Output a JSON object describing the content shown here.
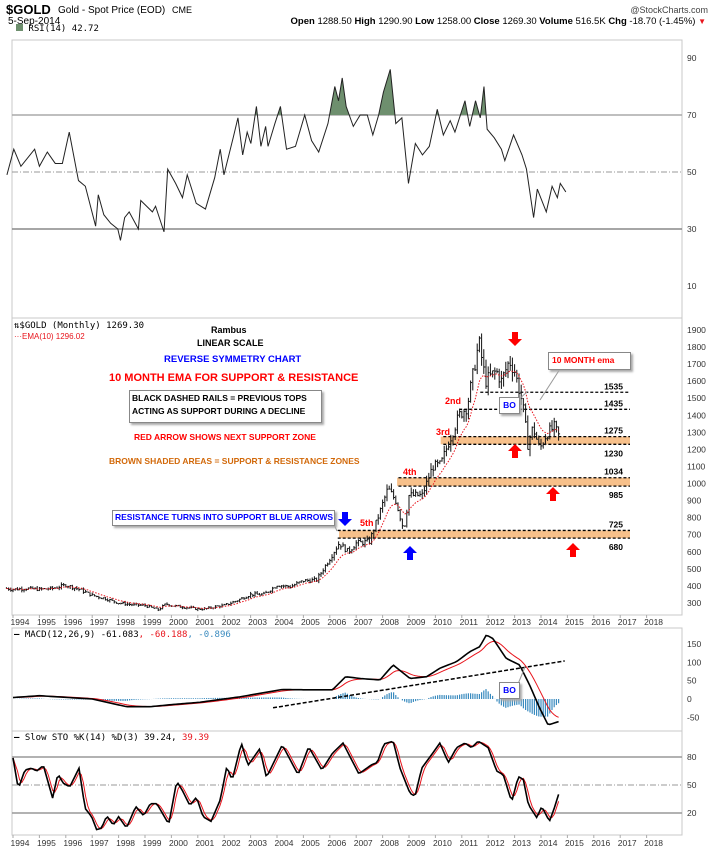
{
  "header": {
    "symbol": "$GOLD",
    "name": "Gold - Spot Price (EOD)",
    "exchange": "CME",
    "source": "@StockCharts.com",
    "date": "5-Sep-2014",
    "open_label": "Open",
    "open": "1288.50",
    "high_label": "High",
    "high": "1290.90",
    "low_label": "Low",
    "low": "1258.00",
    "close_label": "Close",
    "close": "1269.30",
    "volume_label": "Volume",
    "volume": "516.5K",
    "chg_label": "Chg",
    "chg": "-18.70 (-1.45%)",
    "chg_icon": "triangle-down-icon"
  },
  "colors": {
    "price": "#000000",
    "ema": "#e8141c",
    "rsi_fill": "#6e8f6e",
    "macd_hist": "#3a8bbf",
    "zone": "#f7c08a",
    "annotation_red": "#ff0000",
    "annotation_blue": "#0000ff",
    "annotation_brown": "#d2690a"
  },
  "chart_data": [
    {
      "type": "line",
      "panel": "RSI",
      "legend": "RSI(14) 42.72",
      "ylim": [
        0,
        100
      ],
      "yticks": [
        90,
        70,
        50,
        30,
        10
      ],
      "reference_lines": [
        70,
        50,
        30
      ],
      "x": [
        1993.77,
        1994.03,
        1994.3,
        1994.82,
        1995.0,
        1995.3,
        1995.6,
        1995.87,
        1996.13,
        1996.48,
        1996.74,
        1997.13,
        1997.23,
        1997.44,
        1997.7,
        1997.97,
        1998.07,
        1998.23,
        1998.4,
        1998.75,
        1998.84,
        1999.28,
        1999.4,
        1999.72,
        1999.86,
        2000.16,
        2000.42,
        2000.6,
        2000.94,
        2001.29,
        2001.64,
        2001.85,
        2001.99,
        2002.34,
        2002.52,
        2002.7,
        2002.87,
        2003.01,
        2003.22,
        2003.39,
        2003.57,
        2003.66,
        2003.92,
        2004.13,
        2004.36,
        2004.7,
        2005.05,
        2005.31,
        2005.58,
        2005.93,
        2006.19,
        2006.33,
        2006.47,
        2006.62,
        2006.89,
        2007.15,
        2007.42,
        2007.63,
        2007.85,
        2008.03,
        2008.29,
        2008.5,
        2008.73,
        2008.85,
        2008.98,
        2009.24,
        2009.51,
        2009.77,
        2010.07,
        2010.3,
        2010.56,
        2010.74,
        2011.12,
        2011.3,
        2011.52,
        2011.7,
        2011.84,
        2011.96,
        2012.23,
        2012.5,
        2012.63,
        2012.96,
        2013.28,
        2013.45,
        2013.72,
        2013.86,
        2014.2,
        2014.42,
        2014.62,
        2014.73,
        2014.94
      ],
      "values": [
        49,
        58,
        52,
        58,
        52,
        57,
        53,
        53,
        64,
        47,
        45,
        31,
        42,
        35,
        32,
        30,
        26,
        34,
        36,
        30,
        40,
        36,
        38,
        29,
        51,
        46,
        41,
        49,
        39,
        37,
        48,
        58,
        49,
        62,
        69,
        56,
        64,
        60,
        73,
        59,
        66,
        59,
        67,
        73,
        58,
        59,
        70,
        61,
        57,
        67,
        80,
        75,
        83,
        73,
        66,
        70,
        70,
        63,
        70,
        78,
        86,
        67,
        69,
        58,
        46,
        60,
        56,
        59,
        72,
        63,
        68,
        64,
        75,
        66,
        75,
        69,
        80,
        65,
        62,
        58,
        54,
        63,
        56,
        51,
        34,
        44,
        36,
        45,
        41,
        46,
        43
      ]
    },
    {
      "type": "ohlc",
      "panel": "Price",
      "legend": "$GOLD (Monthly) 1269.30",
      "ema_legend": "EMA(10) 1296.02",
      "scale": "linear",
      "ylim": [
        250,
        1950
      ],
      "yticks": [
        1900,
        1800,
        1700,
        1600,
        1500,
        1400,
        1300,
        1200,
        1100,
        1000,
        900,
        800,
        700,
        600,
        500,
        400,
        300
      ],
      "xticks": [
        "1994",
        "1995",
        "1996",
        "1997",
        "1998",
        "1999",
        "2000",
        "2001",
        "2002",
        "2003",
        "2004",
        "2005",
        "2006",
        "2007",
        "2008",
        "2009",
        "2010",
        "2011",
        "2012",
        "2013",
        "2014",
        "2015",
        "2016",
        "2017",
        "2018"
      ],
      "x": [
        1993.75,
        1994,
        1994.5,
        1995,
        1995.5,
        1996,
        1996.5,
        1997,
        1997.5,
        1998,
        1998.5,
        1999,
        1999.5,
        1999.8,
        2000,
        2000.5,
        2001,
        2001.3,
        2001.7,
        2002,
        2002.5,
        2003,
        2003.5,
        2004,
        2004.5,
        2005,
        2005.5,
        2006,
        2006.35,
        2006.7,
        2007,
        2007.5,
        2007.8,
        2008.2,
        2008.5,
        2008.8,
        2009,
        2009.5,
        2009.9,
        2010.2,
        2010.5,
        2010.9,
        2011.2,
        2011.65,
        2011.9,
        2012.3,
        2012.5,
        2012.8,
        2013,
        2013.3,
        2013.5,
        2013.7,
        2013.95,
        2014.2,
        2014.5,
        2014.7
      ],
      "close": [
        385,
        380,
        385,
        380,
        385,
        405,
        380,
        345,
        325,
        300,
        290,
        285,
        260,
        295,
        285,
        275,
        265,
        265,
        280,
        285,
        315,
        350,
        350,
        405,
        395,
        430,
        435,
        560,
        650,
        600,
        650,
        660,
        790,
        970,
        900,
        730,
        930,
        930,
        1100,
        1110,
        1240,
        1400,
        1450,
        1830,
        1600,
        1660,
        1600,
        1720,
        1660,
        1470,
        1230,
        1330,
        1200,
        1290,
        1330,
        1270
      ]
    },
    {
      "type": "line",
      "panel": "MACD",
      "legend": "MACD(12,26,9)",
      "macd_value": "-61.083",
      "signal_value": "-60.188",
      "hist_value": "-0.896",
      "ylim": [
        -80,
        190
      ],
      "yticks": [
        150,
        100,
        50,
        0,
        -50
      ],
      "x": [
        1994,
        1995,
        1997,
        1998.3,
        1999.2,
        2000.06,
        2001.07,
        2002.6,
        2004.2,
        2005.25,
        2006.1,
        2006.6,
        2007.15,
        2007.9,
        2008.4,
        2009.04,
        2009.67,
        2010.17,
        2010.8,
        2011.3,
        2011.68,
        2011.93,
        2012.18,
        2012.68,
        2013.19,
        2013.57,
        2013.95,
        2014.27,
        2014.7
      ],
      "values": [
        4,
        9,
        0,
        -21,
        -21,
        -15,
        -9,
        6,
        26,
        25,
        25,
        61,
        56,
        52,
        93,
        56,
        61,
        84,
        102,
        129,
        143,
        175,
        165,
        111,
        93,
        38,
        -25,
        -71,
        -61
      ]
    },
    {
      "type": "line",
      "panel": "Slow STO",
      "legend": "Slow STO %K(14) %D(3)",
      "k_value": "39.24",
      "d_value": "39.39",
      "ylim": [
        0,
        100
      ],
      "yticks": [
        80,
        50,
        20
      ],
      "x": [
        1994.0,
        1994.2,
        1994.45,
        1994.7,
        1994.9,
        1995.15,
        1995.5,
        1995.7,
        1995.9,
        1996.15,
        1996.5,
        1996.73,
        1996.98,
        1997.17,
        1997.36,
        1997.55,
        1997.8,
        1998.0,
        1998.3,
        1998.65,
        1998.95,
        1999.2,
        1999.45,
        1999.9,
        2000.2,
        2000.4,
        2000.7,
        2000.95,
        2001.2,
        2001.5,
        2001.85,
        2002.1,
        2002.3,
        2002.65,
        2002.9,
        2003.35,
        2003.6,
        2004.2,
        2004.8,
        2005.2,
        2005.7,
        2006.1,
        2006.5,
        2007.1,
        2007.6,
        2007.8,
        2008.05,
        2008.4,
        2008.66,
        2009.04,
        2009.23,
        2009.48,
        2009.92,
        2010.17,
        2010.49,
        2010.8,
        2011.12,
        2011.37,
        2011.62,
        2012.0,
        2012.32,
        2012.57,
        2012.89,
        2013.14,
        2013.33,
        2013.52,
        2013.84,
        2014.03,
        2014.32,
        2014.5,
        2014.7
      ],
      "values": [
        79,
        46,
        66,
        68,
        65,
        71,
        36,
        62,
        52,
        48,
        68,
        25,
        16,
        2,
        4,
        17,
        7,
        16,
        4,
        27,
        17,
        30,
        30,
        8,
        54,
        45,
        28,
        37,
        16,
        11,
        34,
        70,
        55,
        95,
        71,
        89,
        58,
        93,
        61,
        91,
        66,
        84,
        95,
        62,
        72,
        74,
        94,
        97,
        68,
        41,
        38,
        68,
        85,
        95,
        74,
        90,
        95,
        90,
        97,
        90,
        65,
        61,
        32,
        59,
        56,
        29,
        15,
        27,
        11,
        25,
        43
      ]
    }
  ],
  "annotations": {
    "author": "Rambus",
    "scale": "LINEAR SCALE",
    "title": "REVERSE SYMMETRY CHART",
    "subtitle": "10 MONTH EMA FOR SUPPORT & RESISTANCE",
    "box1_line1": "BLACK DASHED RAILS = PREVIOUS TOPS",
    "box1_line2": "ACTING AS SUPPORT DURING A DECLINE",
    "red_arrow_note": "RED ARROW SHOWS NEXT SUPPORT ZONE",
    "brown_note": "BROWN SHADED AREAS = SUPPORT & RESISTANCE ZONES",
    "blue_note": "RESISTANCE TURNS INTO SUPPORT BLUE ARROWS",
    "ema_callout": "10 MONTH ema",
    "bo_price": "BO",
    "bo_macd": "BO",
    "touch_2nd": "2nd",
    "touch_3rd": "3rd",
    "touch_4th": "4th",
    "touch_5th": "5th",
    "rails": [
      {
        "label": "1535",
        "value": 1535,
        "from": 2011.7
      },
      {
        "label": "1435",
        "value": 1435,
        "from": 2010.9
      },
      {
        "label": "1275",
        "value": 1275,
        "from": 2010.3
      },
      {
        "label": "1230",
        "value": 1230,
        "from": 2010.3
      },
      {
        "label": "1034",
        "value": 1034,
        "from": 2008.6
      },
      {
        "label": "985",
        "value": 985,
        "from": 2008.6
      },
      {
        "label": "725",
        "value": 725,
        "from": 2006.3
      },
      {
        "label": "680",
        "value": 680,
        "from": 2006.3
      }
    ],
    "zones": [
      [
        1230,
        1275,
        2010.2
      ],
      [
        985,
        1034,
        2008.55
      ],
      [
        680,
        725,
        2006.35
      ]
    ],
    "macd_trendline": [
      [
        2003.85,
        -24
      ],
      [
        2014.9,
        104
      ]
    ]
  }
}
